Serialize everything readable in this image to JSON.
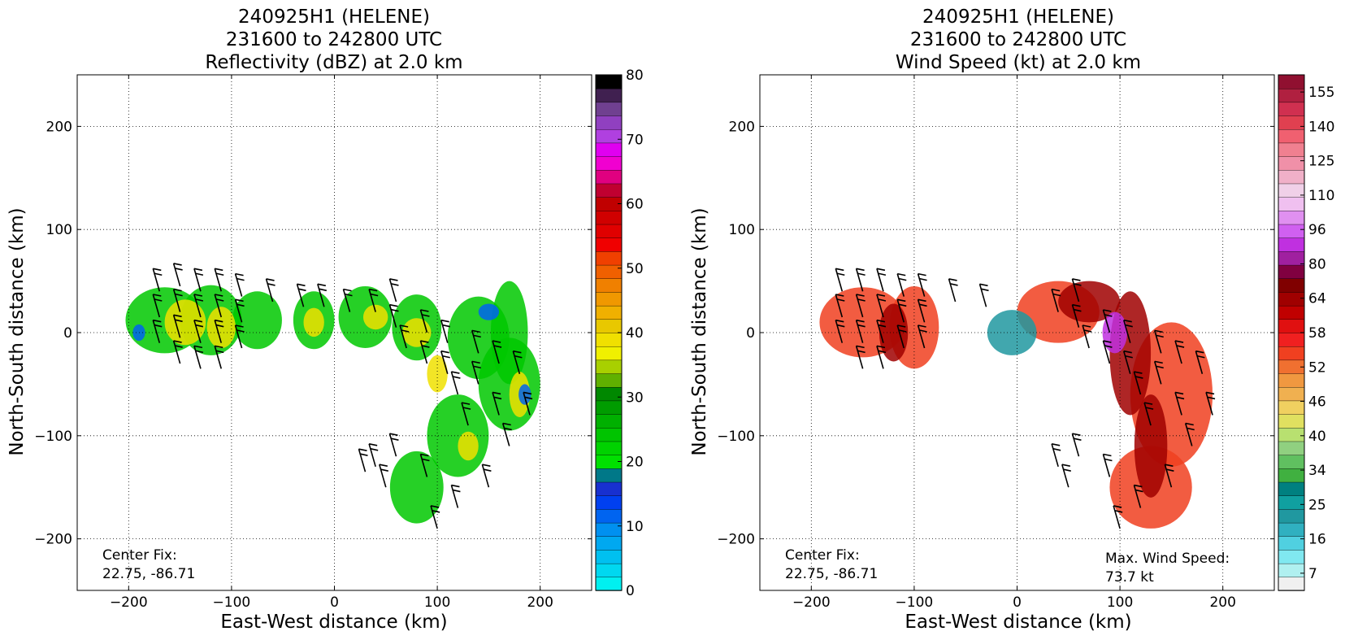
{
  "chart_data": [
    {
      "type": "heatmap",
      "title": [
        "240925H1 (HELENE)",
        "231600 to 242800 UTC",
        "Reflectivity (dBZ) at 2.0 km"
      ],
      "xlabel": "East-West distance (km)",
      "ylabel": "North-South distance (km)",
      "xlim": [
        -250,
        250
      ],
      "ylim": [
        -250,
        250
      ],
      "xticks": [
        -200,
        -100,
        0,
        100,
        200
      ],
      "yticks": [
        -200,
        -100,
        0,
        100,
        200
      ],
      "x_tick_labels": [
        "−200",
        "−100",
        "0",
        "100",
        "200"
      ],
      "y_tick_labels": [
        "−200",
        "−100",
        "0",
        "100",
        "200"
      ],
      "grid": "dotted",
      "annotation_label": "Center Fix:",
      "annotation_value": "22.75, -86.71",
      "colorbar": {
        "min": 0,
        "max": 80,
        "tick_values": [
          0,
          10,
          20,
          30,
          40,
          50,
          60,
          70,
          80
        ],
        "tick_labels": [
          "0",
          "10",
          "20",
          "30",
          "40",
          "50",
          "60",
          "70",
          "80"
        ],
        "colors": [
          "#00f0f0",
          "#00d8f0",
          "#00c0f0",
          "#00a8f0",
          "#0090f0",
          "#0064f0",
          "#0040f0",
          "#1830d0",
          "#007888",
          "#00e000",
          "#00d200",
          "#00c400",
          "#00b000",
          "#009c00",
          "#008800",
          "#60b000",
          "#a8d000",
          "#f0f000",
          "#f0e000",
          "#e8c800",
          "#f0b000",
          "#f09800",
          "#f08000",
          "#f06000",
          "#f04000",
          "#f00000",
          "#e00000",
          "#d00000",
          "#c00000",
          "#c00030",
          "#e00080",
          "#f000d0",
          "#e000f0",
          "#b040e0",
          "#9040c0",
          "#704090",
          "#402050",
          "#000000"
        ]
      },
      "series": [
        {
          "color": "#00c800",
          "blobs": [
            [
              -165,
              12,
              38,
              32
            ],
            [
              -120,
              12,
              30,
              34
            ],
            [
              -75,
              12,
              24,
              28
            ],
            [
              -20,
              12,
              20,
              28
            ],
            [
              30,
              15,
              26,
              30
            ],
            [
              80,
              5,
              24,
              32
            ],
            [
              140,
              -5,
              30,
              40
            ],
            [
              170,
              -50,
              30,
              45
            ],
            [
              120,
              -100,
              30,
              40
            ],
            [
              80,
              -150,
              26,
              35
            ],
            [
              170,
              0,
              18,
              50
            ]
          ]
        },
        {
          "color": "#f0e000",
          "blobs": [
            [
              -145,
              10,
              20,
              22
            ],
            [
              -110,
              5,
              14,
              20
            ],
            [
              -20,
              10,
              10,
              14
            ],
            [
              40,
              15,
              12,
              12
            ],
            [
              80,
              0,
              14,
              14
            ],
            [
              100,
              -40,
              10,
              18
            ],
            [
              130,
              -110,
              10,
              14
            ],
            [
              180,
              -60,
              10,
              22
            ]
          ]
        },
        {
          "color": "#0064f0",
          "blobs": [
            [
              -190,
              0,
              6,
              8
            ],
            [
              150,
              20,
              10,
              8
            ],
            [
              185,
              -60,
              6,
              10
            ]
          ]
        }
      ],
      "barbs": [
        [
          -170,
          40
        ],
        [
          -170,
          15
        ],
        [
          -170,
          -10
        ],
        [
          -150,
          45
        ],
        [
          -150,
          20
        ],
        [
          -150,
          -5
        ],
        [
          -150,
          -30
        ],
        [
          -130,
          40
        ],
        [
          -130,
          15
        ],
        [
          -130,
          -10
        ],
        [
          -130,
          -35
        ],
        [
          -110,
          40
        ],
        [
          -110,
          15
        ],
        [
          -110,
          -10
        ],
        [
          -110,
          -35
        ],
        [
          -90,
          35
        ],
        [
          -90,
          10
        ],
        [
          -90,
          -15
        ],
        [
          -60,
          30
        ],
        [
          -30,
          25
        ],
        [
          -10,
          25
        ],
        [
          15,
          20
        ],
        [
          40,
          20
        ],
        [
          60,
          30
        ],
        [
          60,
          5
        ],
        [
          70,
          -15
        ],
        [
          90,
          0
        ],
        [
          90,
          -30
        ],
        [
          110,
          -10
        ],
        [
          110,
          -40
        ],
        [
          120,
          -60
        ],
        [
          130,
          -90
        ],
        [
          140,
          -20
        ],
        [
          140,
          -50
        ],
        [
          160,
          -30
        ],
        [
          160,
          -80
        ],
        [
          170,
          -110
        ],
        [
          180,
          -40
        ],
        [
          190,
          -80
        ],
        [
          60,
          -120
        ],
        [
          90,
          -140
        ],
        [
          120,
          -170
        ],
        [
          150,
          -150
        ],
        [
          100,
          -190
        ],
        [
          40,
          -130
        ],
        [
          50,
          -150
        ],
        [
          30,
          -135
        ]
      ]
    },
    {
      "type": "heatmap",
      "title": [
        "240925H1 (HELENE)",
        "231600 to 242800 UTC",
        "Wind Speed (kt) at 2.0 km"
      ],
      "xlabel": "East-West distance (km)",
      "ylabel": "North-South distance (km)",
      "xlim": [
        -250,
        250
      ],
      "ylim": [
        -250,
        250
      ],
      "xticks": [
        -200,
        -100,
        0,
        100,
        200
      ],
      "yticks": [
        -200,
        -100,
        0,
        100,
        200
      ],
      "x_tick_labels": [
        "−200",
        "−100",
        "0",
        "100",
        "200"
      ],
      "y_tick_labels": [
        "−200",
        "−100",
        "0",
        "100",
        "200"
      ],
      "grid": "dotted",
      "annotation_label": "Center Fix:",
      "annotation_value": "22.75, -86.71",
      "max_wind_label": "Max. Wind Speed:",
      "max_wind_value": "73.7 kt",
      "colorbar": {
        "tick_labels": [
          "7",
          "16",
          "25",
          "34",
          "40",
          "46",
          "52",
          "58",
          "64",
          "80",
          "96",
          "110",
          "125",
          "140",
          "155"
        ],
        "colors": [
          "#f0f0f0",
          "#b0f0f0",
          "#80e8f0",
          "#50d0e0",
          "#30b0c0",
          "#2098a0",
          "#10a0a0",
          "#008080",
          "#40b040",
          "#60c060",
          "#90d080",
          "#b8e070",
          "#e0e060",
          "#f0d060",
          "#f0b050",
          "#f09840",
          "#f07030",
          "#f04020",
          "#f02020",
          "#e01010",
          "#c00000",
          "#a00000",
          "#800000",
          "#800040",
          "#a020a0",
          "#c030e0",
          "#d060f0",
          "#e090f0",
          "#f0c0f0",
          "#f0d0e8",
          "#f0b0c8",
          "#f090a8",
          "#f08090",
          "#f06070",
          "#e04050",
          "#d03050",
          "#b02040",
          "#901030"
        ]
      },
      "series": [
        {
          "color": "#f04020",
          "blobs": [
            [
              -150,
              10,
              42,
              34
            ],
            [
              -100,
              5,
              24,
              40
            ],
            [
              40,
              20,
              40,
              30
            ],
            [
              150,
              -60,
              40,
              70
            ],
            [
              130,
              -150,
              40,
              40
            ]
          ]
        },
        {
          "color": "#a00000",
          "blobs": [
            [
              -120,
              0,
              14,
              28
            ],
            [
              70,
              30,
              30,
              20
            ],
            [
              110,
              -20,
              20,
              60
            ],
            [
              130,
              -110,
              16,
              50
            ]
          ]
        },
        {
          "color": "#2098a0",
          "blobs": [
            [
              -5,
              0,
              24,
              22
            ]
          ]
        },
        {
          "color": "#c030e0",
          "blobs": [
            [
              95,
              0,
              12,
              20
            ]
          ]
        }
      ],
      "barbs": [
        [
          -170,
          40
        ],
        [
          -170,
          15
        ],
        [
          -170,
          -10
        ],
        [
          -150,
          40
        ],
        [
          -150,
          15
        ],
        [
          -150,
          -10
        ],
        [
          -150,
          -35
        ],
        [
          -130,
          40
        ],
        [
          -130,
          15
        ],
        [
          -130,
          -10
        ],
        [
          -130,
          -35
        ],
        [
          -110,
          35
        ],
        [
          -110,
          10
        ],
        [
          -110,
          -15
        ],
        [
          -90,
          35
        ],
        [
          -90,
          10
        ],
        [
          -90,
          -15
        ],
        [
          -60,
          30
        ],
        [
          -30,
          25
        ],
        [
          40,
          20
        ],
        [
          60,
          30
        ],
        [
          60,
          5
        ],
        [
          70,
          -15
        ],
        [
          90,
          0
        ],
        [
          90,
          -30
        ],
        [
          110,
          -10
        ],
        [
          110,
          -40
        ],
        [
          120,
          -60
        ],
        [
          130,
          -90
        ],
        [
          140,
          -20
        ],
        [
          140,
          -50
        ],
        [
          160,
          -30
        ],
        [
          160,
          -80
        ],
        [
          170,
          -110
        ],
        [
          180,
          -40
        ],
        [
          190,
          -80
        ],
        [
          60,
          -120
        ],
        [
          90,
          -140
        ],
        [
          120,
          -170
        ],
        [
          150,
          -150
        ],
        [
          100,
          -190
        ],
        [
          40,
          -130
        ],
        [
          50,
          -150
        ]
      ]
    }
  ]
}
